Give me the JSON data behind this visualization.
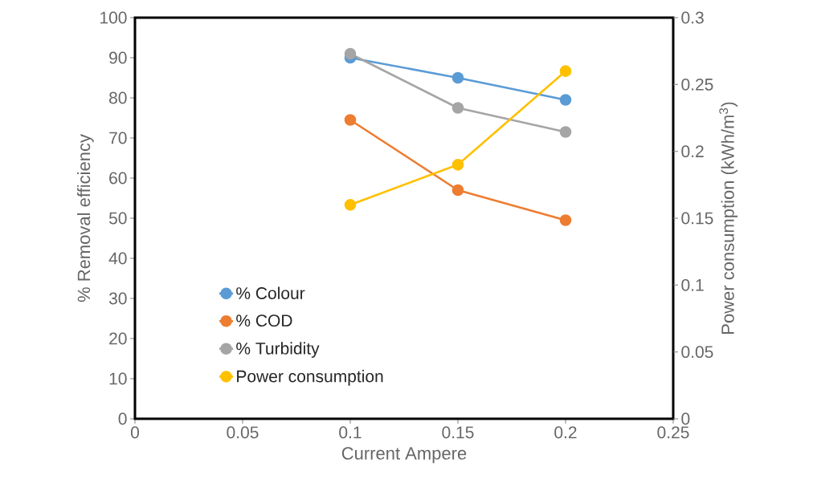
{
  "chart_data": {
    "type": "line",
    "xlabel": "Current Ampere",
    "ylabel": "% Removal efficiency",
    "y2label": "Power consumption (kWh/m$^{3}$)",
    "x": [
      0.1,
      0.15,
      0.2
    ],
    "series": [
      {
        "name": "% Colour",
        "color": "#5b9bd5",
        "values": [
          90,
          85,
          79.5
        ]
      },
      {
        "name": "% COD",
        "color": "#ed7d31",
        "values": [
          74.5,
          57,
          49.5
        ]
      },
      {
        "name": "% Turbidity",
        "color": "#a5a5a5",
        "values": [
          91,
          77.5,
          71.5
        ]
      },
      {
        "name": "Power consumption",
        "color": "#ffc000",
        "values": [
          0.16,
          0.19,
          0.26
        ],
        "axis": "y2"
      }
    ],
    "xlim": [
      0,
      0.25
    ],
    "xticks": [
      0,
      0.05,
      0.1,
      0.15,
      0.2,
      0.25
    ],
    "ylim": [
      0,
      100
    ],
    "yticks": [
      0,
      10,
      20,
      30,
      40,
      50,
      60,
      70,
      80,
      90,
      100
    ],
    "y2lim": [
      0,
      0.3
    ],
    "y2ticks": [
      0,
      0.05,
      0.1,
      0.15,
      0.2,
      0.25,
      0.3
    ],
    "grid": false,
    "legend": "bottom left",
    "marker": "circle",
    "line_style": "solid"
  }
}
